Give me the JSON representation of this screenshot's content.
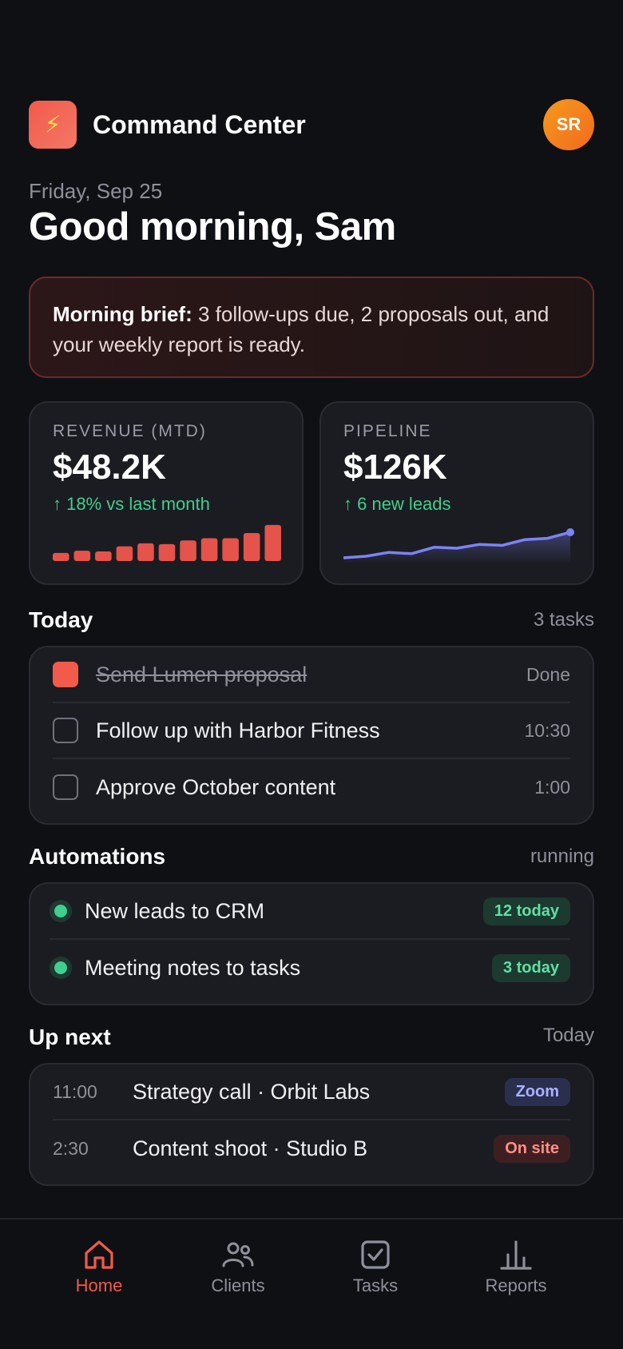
{
  "header": {
    "title": "Command Center",
    "avatar_initials": "SR",
    "logo_icon": "lightning-bolt-icon"
  },
  "date": "Friday, Sep 25",
  "greeting": "Good morning, Sam",
  "brief": {
    "label": "Morning brief:",
    "text": " 3 follow-ups due, 2 proposals out, and your weekly report is ready."
  },
  "stats": {
    "revenue": {
      "label": "REVENUE (MTD)",
      "value": "$48.2K",
      "delta": "↑ 18% vs last month",
      "color": "#e5534b",
      "bars": [
        0.22,
        0.28,
        0.26,
        0.4,
        0.48,
        0.46,
        0.56,
        0.62,
        0.62,
        0.76,
        0.98
      ]
    },
    "pipeline": {
      "label": "PIPELINE",
      "value": "$126K",
      "delta": "↑ 6 new leads",
      "color": "#7c83f5",
      "trend": [
        0.05,
        0.1,
        0.22,
        0.18,
        0.38,
        0.35,
        0.47,
        0.44,
        0.62,
        0.66,
        0.85
      ]
    }
  },
  "today": {
    "title": "Today",
    "meta": "3 tasks",
    "tasks": [
      {
        "label": "Send Lumen proposal",
        "time": "Done",
        "done": true
      },
      {
        "label": "Follow up with Harbor Fitness",
        "time": "10:30",
        "done": false
      },
      {
        "label": "Approve October content",
        "time": "1:00",
        "done": false
      }
    ]
  },
  "automations": {
    "title": "Automations",
    "meta": "running",
    "items": [
      {
        "label": "New leads to CRM",
        "badge": "12 today"
      },
      {
        "label": "Meeting notes to tasks",
        "badge": "3 today"
      }
    ]
  },
  "upnext": {
    "title": "Up next",
    "meta": "Today",
    "events": [
      {
        "time": "11:00",
        "label": "Strategy call · Orbit Labs",
        "badge": "Zoom"
      },
      {
        "time": "2:30",
        "label": "Content shoot · Studio B",
        "badge": "On site"
      }
    ]
  },
  "nav": [
    {
      "label": "Home",
      "icon": "home-icon",
      "active": true
    },
    {
      "label": "Clients",
      "icon": "users-icon",
      "active": false
    },
    {
      "label": "Tasks",
      "icon": "checkbox-icon",
      "active": false
    },
    {
      "label": "Reports",
      "icon": "bar-chart-icon",
      "active": false
    }
  ],
  "colors": {
    "accent": "#f25a4a",
    "success": "#3fcf8e",
    "background": "#0f1014",
    "card": "#1b1c21"
  }
}
